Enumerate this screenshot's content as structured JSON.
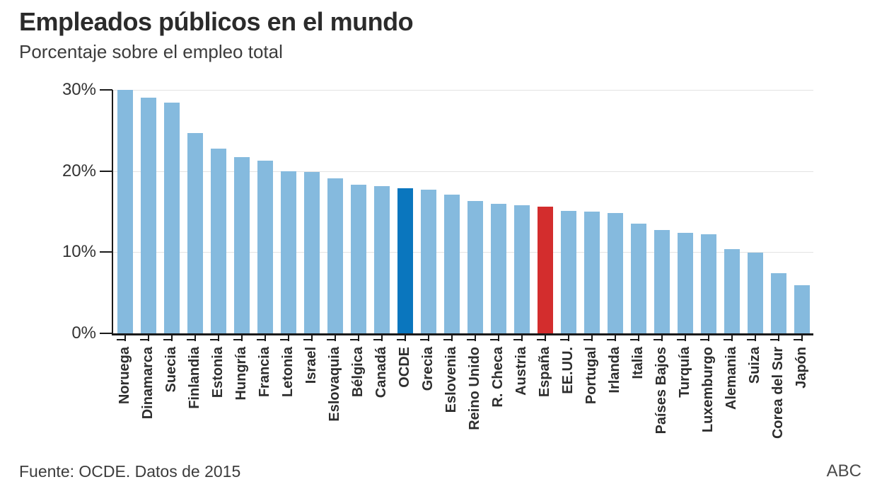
{
  "chart_data": {
    "type": "bar",
    "title": "Empleados públicos en el mundo",
    "subtitle": "Porcentaje sobre el empleo total",
    "source": "Fuente: OCDE. Datos de 2015",
    "credit": "ABC",
    "unit": "%",
    "categories": [
      "Noruega",
      "Dinamarca",
      "Suecia",
      "Finlandia",
      "Estonia",
      "Hungría",
      "Francia",
      "Letonia",
      "Israel",
      "Eslovaquia",
      "Bélgica",
      "Canadá",
      "OCDE",
      "Grecia",
      "Eslovenia",
      "Reino Unido",
      "R. Checa",
      "Austria",
      "España",
      "EE.UU.",
      "Portugal",
      "Irlanda",
      "Italia",
      "Países Bajos",
      "Turquía",
      "Luxemburgo",
      "Alemania",
      "Suiza",
      "Corea del Sur",
      "Japón"
    ],
    "values": [
      30.0,
      29.0,
      28.4,
      24.7,
      22.8,
      21.7,
      21.3,
      20.0,
      19.9,
      19.1,
      18.3,
      18.1,
      17.9,
      17.7,
      17.1,
      16.3,
      16.0,
      15.8,
      15.6,
      15.1,
      15.0,
      14.8,
      13.5,
      12.7,
      12.4,
      12.2,
      10.4,
      9.9,
      7.4,
      5.9
    ],
    "ylim": [
      0,
      30
    ],
    "yticks": [
      {
        "value": 0,
        "label": "0%"
      },
      {
        "value": 10,
        "label": "10%"
      },
      {
        "value": 20,
        "label": "20%"
      },
      {
        "value": 30,
        "label": "30%"
      }
    ],
    "grid": "horizontal",
    "legend": "none",
    "xlabel": "",
    "ylabel": "",
    "highlighted_bars": {
      "OCDE": "#0a76be",
      "España": "#d32d2d"
    },
    "colors": {
      "bar_default": "#85bade",
      "bar_ocde": "#0a76be",
      "bar_espana": "#d32d2d",
      "axis": "#1a1a1a",
      "gridline": "#e3e3e3",
      "title_text": "#2b2b2b",
      "subtitle_text": "#3c3c3c",
      "tick_label_text": "#2e2e2e",
      "source_text": "#3c3c3c",
      "credit_text": "#4a4a4a"
    }
  }
}
